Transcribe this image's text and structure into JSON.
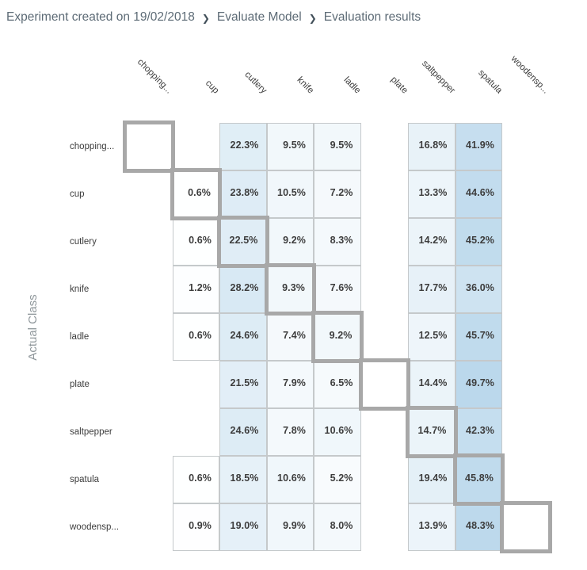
{
  "breadcrumb": {
    "separator": "❯",
    "items": [
      "Experiment created on 19/02/2018",
      "Evaluate Model",
      "Evaluation results"
    ]
  },
  "axis": {
    "y_label": "Actual Class"
  },
  "chart_data": {
    "type": "heatmap",
    "ylabel": "Actual Class",
    "unit": "%",
    "x_categories": [
      "chopping...",
      "cup",
      "cutlery",
      "knife",
      "ladle",
      "plate",
      "saltpepper",
      "spatula",
      "woodensp..."
    ],
    "y_categories": [
      "chopping...",
      "cup",
      "cutlery",
      "knife",
      "ladle",
      "plate",
      "saltpepper",
      "spatula",
      "woodensp..."
    ],
    "matrix": [
      [
        null,
        null,
        22.3,
        9.5,
        9.5,
        null,
        16.8,
        41.9,
        null
      ],
      [
        null,
        0.6,
        23.8,
        10.5,
        7.2,
        null,
        13.3,
        44.6,
        null
      ],
      [
        null,
        0.6,
        22.5,
        9.2,
        8.3,
        null,
        14.2,
        45.2,
        null
      ],
      [
        null,
        1.2,
        28.2,
        9.3,
        7.6,
        null,
        17.7,
        36.0,
        null
      ],
      [
        null,
        0.6,
        24.6,
        7.4,
        9.2,
        null,
        12.5,
        45.7,
        null
      ],
      [
        null,
        null,
        21.5,
        7.9,
        6.5,
        null,
        14.4,
        49.7,
        null
      ],
      [
        null,
        null,
        24.6,
        7.8,
        10.6,
        null,
        14.7,
        42.3,
        null
      ],
      [
        null,
        0.6,
        18.5,
        10.6,
        5.2,
        null,
        19.4,
        45.8,
        null
      ],
      [
        null,
        0.9,
        19.0,
        9.9,
        8.0,
        null,
        13.9,
        48.3,
        null
      ]
    ],
    "diagonal_outlined": true,
    "color_scale": {
      "min_color": "#ffffff",
      "max_color": "#76b1d8",
      "domain": [
        0,
        100
      ]
    },
    "legend_position": "none",
    "grid": "per-value-cell"
  },
  "colors": {
    "cell_border": "#c5c9cb",
    "diagonal_border": "#a8a8a8",
    "value_text": "#3d3d3d",
    "label_text": "#3d3d3d",
    "axis_label_text": "#8f979b",
    "breadcrumb_text": "#5d6b76",
    "breadcrumb_separator": "#42505a",
    "heat_max": "#76b1d8"
  }
}
